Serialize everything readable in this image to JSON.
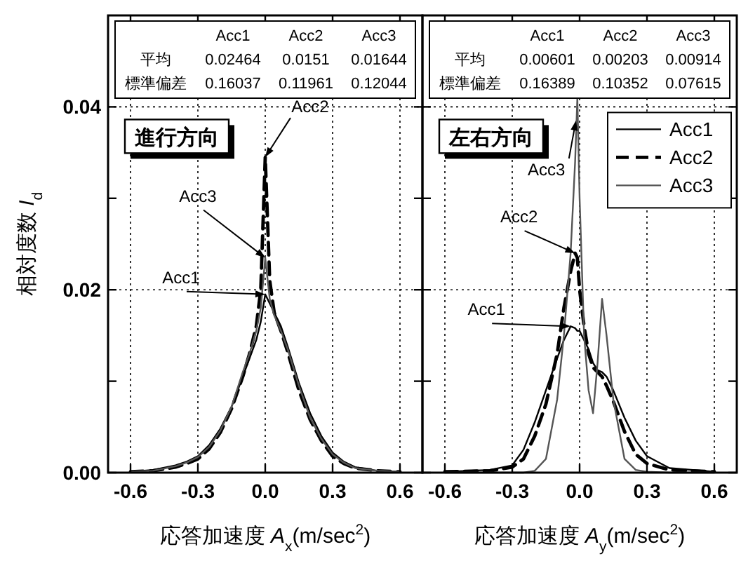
{
  "chart_data": [
    {
      "type": "line",
      "xlabel": "応答加速度 *A*$_{x}$(m/sec$^{2}$)",
      "ylabel": "相対度数 *I*$_{d}$",
      "xlim": [
        -0.7,
        0.7
      ],
      "ylim": [
        0,
        0.05
      ],
      "xticks": [
        {
          "value": -0.6,
          "label": "-0.6"
        },
        {
          "value": -0.3,
          "label": "-0.3"
        },
        {
          "value": 0,
          "label": "0.0"
        },
        {
          "value": 0.3,
          "label": "0.3"
        },
        {
          "value": 0.6,
          "label": "0.6"
        }
      ],
      "yticks": [
        {
          "value": 0,
          "label": "0.00"
        },
        {
          "value": 0.01,
          "label": null
        },
        {
          "value": 0.02,
          "label": "0.02"
        },
        {
          "value": 0.03,
          "label": null
        },
        {
          "value": 0.04,
          "label": "0.04"
        }
      ],
      "grid": true,
      "legend": false,
      "series": [
        {
          "name": "Acc1",
          "color": "#000000",
          "line_style": "solid",
          "x": [
            -0.6,
            -0.5,
            -0.4,
            -0.35,
            -0.3,
            -0.25,
            -0.2,
            -0.15,
            -0.1,
            -0.07,
            -0.04,
            -0.02,
            0,
            0.02,
            0.04,
            0.07,
            0.1,
            0.15,
            0.2,
            0.25,
            0.3,
            0.35,
            0.4,
            0.5,
            0.6
          ],
          "values": [
            0.0001,
            0.0003,
            0.0008,
            0.0012,
            0.0018,
            0.003,
            0.0048,
            0.0072,
            0.0105,
            0.0125,
            0.0145,
            0.0165,
            0.0195,
            0.0185,
            0.0175,
            0.016,
            0.0138,
            0.0098,
            0.0065,
            0.004,
            0.0022,
            0.0012,
            0.0006,
            0.0002,
            0.0001
          ]
        },
        {
          "name": "Acc2",
          "color": "#000000",
          "line_style": "dashed",
          "x": [
            -0.6,
            -0.5,
            -0.4,
            -0.35,
            -0.3,
            -0.25,
            -0.2,
            -0.15,
            -0.1,
            -0.07,
            -0.04,
            -0.02,
            0,
            0.02,
            0.04,
            0.07,
            0.1,
            0.15,
            0.2,
            0.25,
            0.3,
            0.35,
            0.4,
            0.5,
            0.6
          ],
          "values": [
            0.0001,
            0.0002,
            0.0006,
            0.001,
            0.0015,
            0.0026,
            0.0044,
            0.007,
            0.0105,
            0.013,
            0.016,
            0.02,
            0.0345,
            0.021,
            0.0175,
            0.0155,
            0.0132,
            0.009,
            0.0058,
            0.0035,
            0.0018,
            0.001,
            0.0005,
            0.0002,
            0.0001
          ]
        },
        {
          "name": "Acc3",
          "color": "#555555",
          "line_style": "solid",
          "x": [
            -0.6,
            -0.5,
            -0.4,
            -0.35,
            -0.3,
            -0.25,
            -0.2,
            -0.15,
            -0.1,
            -0.07,
            -0.04,
            -0.02,
            0,
            0.02,
            0.04,
            0.07,
            0.1,
            0.15,
            0.2,
            0.25,
            0.3,
            0.35,
            0.4,
            0.5,
            0.6
          ],
          "values": [
            0.0001,
            0.0002,
            0.0007,
            0.0011,
            0.0017,
            0.0028,
            0.0046,
            0.0072,
            0.011,
            0.013,
            0.0155,
            0.018,
            0.0235,
            0.019,
            0.0172,
            0.0155,
            0.0135,
            0.0095,
            0.006,
            0.0037,
            0.002,
            0.0011,
            0.0005,
            0.0002,
            0.0001
          ]
        }
      ],
      "annotations": [
        "進行方向",
        "Acc1",
        "Acc2",
        "Acc3",
        "平均",
        "0.02464",
        "0.0151",
        "0.01644",
        "標準偏差",
        "0.16037",
        "0.11961",
        "0.12044"
      ]
    },
    {
      "type": "line",
      "xlabel": "応答加速度 *A*$_{y}$(m/sec$^{2}$)",
      "xlim": [
        -0.7,
        0.7
      ],
      "ylim": [
        0,
        0.05
      ],
      "xticks": [
        {
          "value": -0.6,
          "label": "-0.6"
        },
        {
          "value": -0.3,
          "label": "-0.3"
        },
        {
          "value": 0,
          "label": "0.0"
        },
        {
          "value": 0.3,
          "label": "0.3"
        },
        {
          "value": 0.6,
          "label": "0.6"
        }
      ],
      "yticks": [
        0,
        {
          "value": 0.01,
          "label": null
        },
        0.02,
        {
          "value": 0.03,
          "label": null
        },
        0.04
      ],
      "tick_labels": "x",
      "grid": true,
      "legend": "top right",
      "series": [
        {
          "name": "Acc1",
          "color": "#000000",
          "line_style": "solid",
          "x": [
            -0.6,
            -0.4,
            -0.3,
            -0.25,
            -0.2,
            -0.15,
            -0.1,
            -0.07,
            -0.04,
            -0.02,
            -0.01,
            0,
            0.02,
            0.04,
            0.06,
            0.08,
            0.1,
            0.12,
            0.15,
            0.2,
            0.25,
            0.3,
            0.4,
            0.6
          ],
          "values": [
            0.0001,
            0.0003,
            0.0008,
            0.0025,
            0.0055,
            0.009,
            0.0125,
            0.0145,
            0.016,
            0.0158,
            0.0155,
            0.0155,
            0.0145,
            0.0135,
            0.012,
            0.0112,
            0.011,
            0.0105,
            0.009,
            0.006,
            0.0035,
            0.0018,
            0.0005,
            0.0001
          ]
        },
        {
          "name": "Acc2",
          "color": "#000000",
          "line_style": "dashed",
          "x": [
            -0.6,
            -0.4,
            -0.3,
            -0.25,
            -0.2,
            -0.15,
            -0.1,
            -0.07,
            -0.04,
            -0.02,
            -0.01,
            0,
            0.02,
            0.04,
            0.06,
            0.08,
            0.1,
            0.12,
            0.15,
            0.2,
            0.25,
            0.3,
            0.4,
            0.6
          ],
          "values": [
            0.0001,
            0.0002,
            0.0006,
            0.0015,
            0.004,
            0.0075,
            0.013,
            0.018,
            0.022,
            0.024,
            0.0235,
            0.02,
            0.016,
            0.013,
            0.0115,
            0.011,
            0.0105,
            0.0095,
            0.0078,
            0.0045,
            0.002,
            0.001,
            0.0003,
            0.0001
          ]
        },
        {
          "name": "Acc3",
          "color": "#555555",
          "line_style": "solid",
          "x": [
            -0.6,
            -0.4,
            -0.3,
            -0.25,
            -0.2,
            -0.15,
            -0.1,
            -0.07,
            -0.04,
            -0.02,
            -0.01,
            0,
            0.02,
            0.04,
            0.06,
            0.08,
            0.1,
            0.12,
            0.15,
            0.2,
            0.25,
            0.3,
            0.4,
            0.6
          ],
          "values": [
            0,
            0,
            0,
            0,
            0.0002,
            0.0015,
            0.008,
            0.015,
            0.024,
            0.034,
            0.041,
            0.03,
            0.015,
            0.009,
            0.0065,
            0.012,
            0.019,
            0.015,
            0.008,
            0.0015,
            0.0003,
            0.0001,
            0,
            0
          ]
        }
      ],
      "annotations": [
        "左右方向",
        "Acc1",
        "Acc2",
        "Acc3",
        "平均",
        "0.00601",
        "0.00203",
        "0.00914",
        "標準偏差",
        "0.16389",
        "0.10352",
        "0.07615"
      ]
    }
  ]
}
